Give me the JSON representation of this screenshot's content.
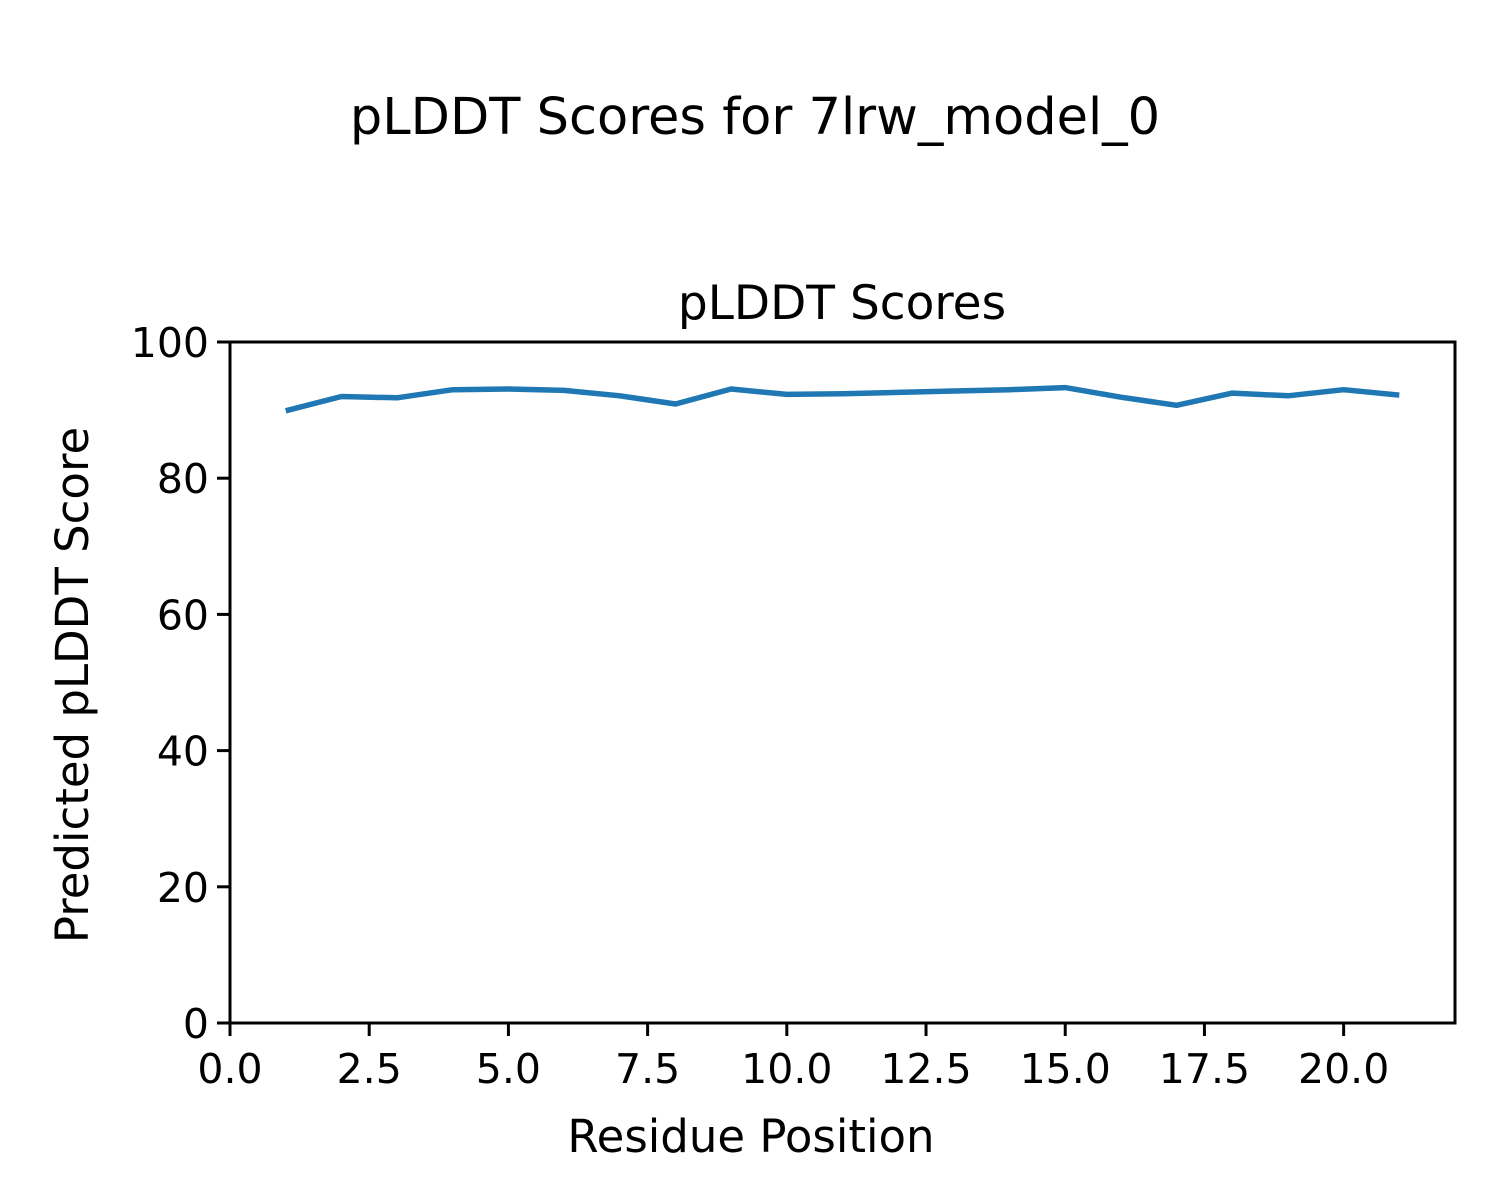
{
  "figure": {
    "suptitle": "pLDDT Scores for 7lrw_model_0",
    "background_color": "#ffffff",
    "spine_color": "#000000"
  },
  "chart_data": {
    "type": "line",
    "title": "pLDDT Scores",
    "xlabel": "Residue Position",
    "ylabel": "Predicted pLDDT Score",
    "xlim": [
      0,
      22
    ],
    "ylim": [
      0,
      100
    ],
    "grid": false,
    "legend": "none",
    "x_tick_values": [
      0,
      2.5,
      5,
      7.5,
      10,
      12.5,
      15,
      17.5,
      20
    ],
    "x_tick_labels": [
      "0.0",
      "2.5",
      "5.0",
      "7.5",
      "10.0",
      "12.5",
      "15.0",
      "17.5",
      "20.0"
    ],
    "y_tick_values": [
      0,
      20,
      40,
      60,
      80,
      100
    ],
    "y_tick_labels": [
      "0",
      "20",
      "40",
      "60",
      "80",
      "100"
    ],
    "series": [
      {
        "name": "pLDDT",
        "color": "#1f77b4",
        "x": [
          1,
          2,
          3,
          4,
          5,
          6,
          7,
          8,
          9,
          10,
          11,
          12,
          13,
          14,
          15,
          16,
          17,
          18,
          19,
          20,
          21
        ],
        "y": [
          89.9,
          92.0,
          91.8,
          93.0,
          93.1,
          92.9,
          92.1,
          90.9,
          93.1,
          92.3,
          92.4,
          92.6,
          92.8,
          93.0,
          93.3,
          91.9,
          90.7,
          92.5,
          92.1,
          93.0,
          92.2
        ]
      }
    ]
  }
}
